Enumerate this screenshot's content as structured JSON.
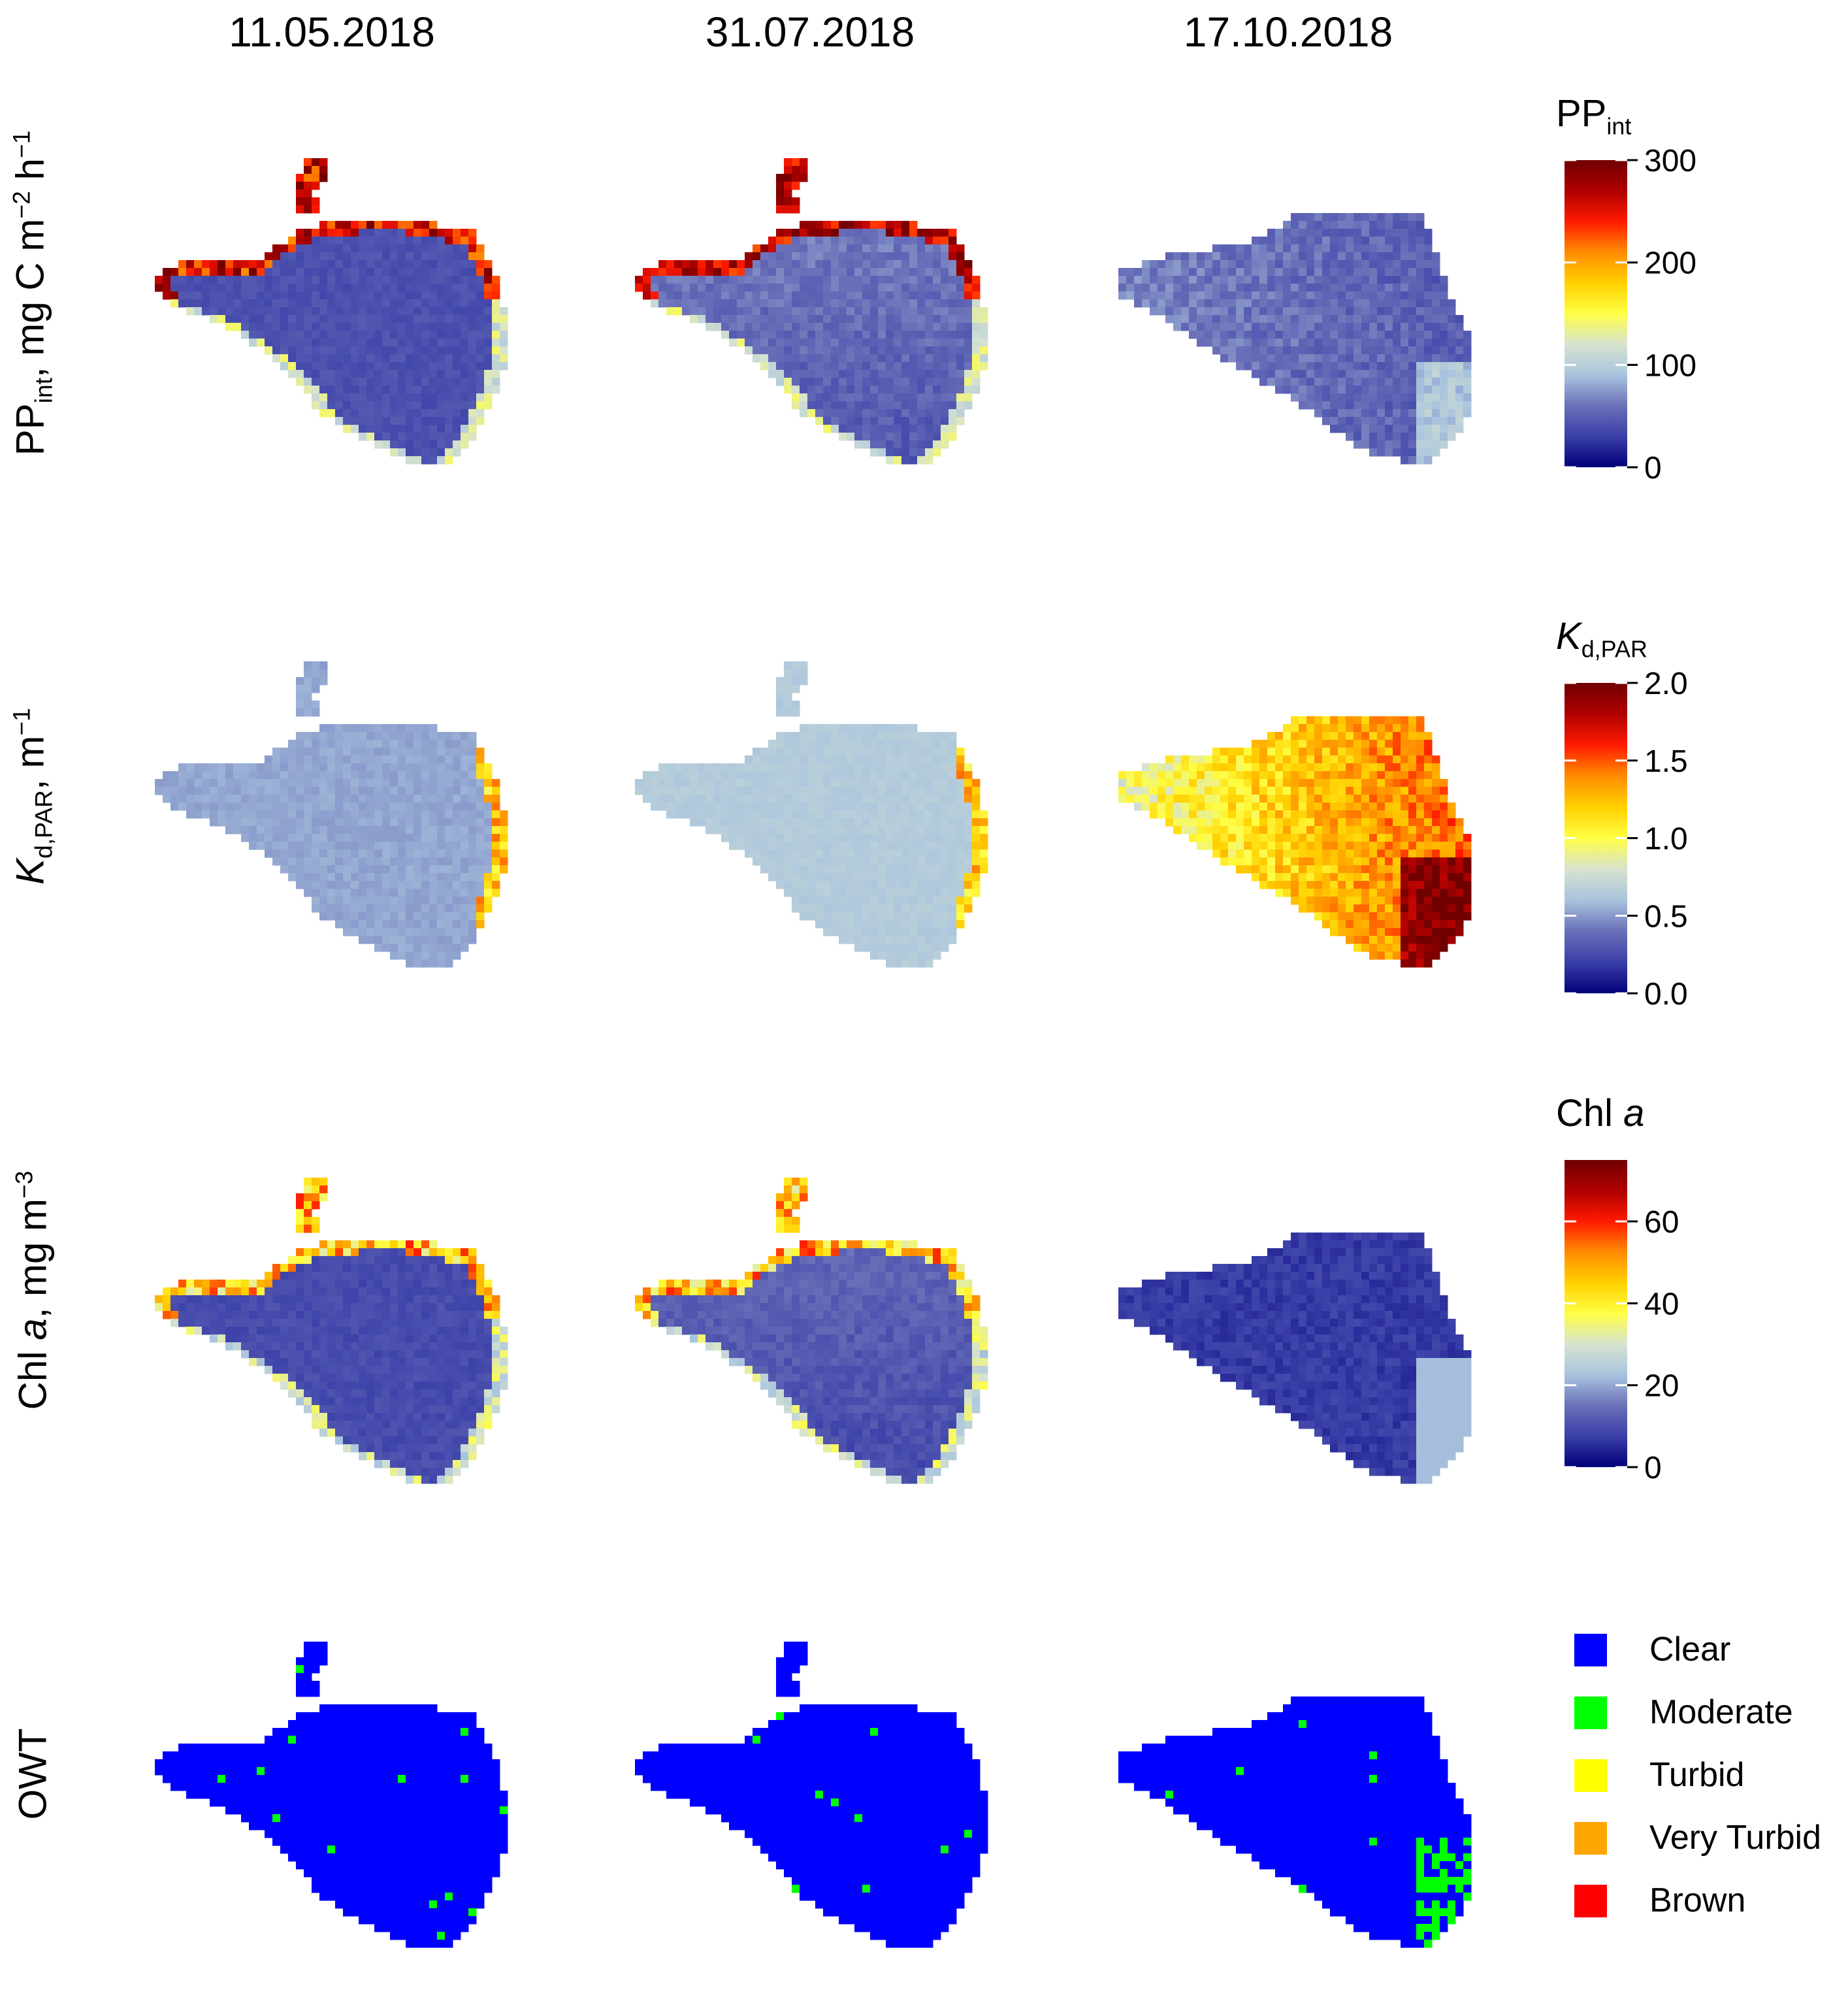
{
  "columns": [
    "11.05.2018",
    "31.07.2018",
    "17.10.2018"
  ],
  "rows": [
    {
      "id": "ppint",
      "label_main": "PP",
      "label_sub": "int",
      "label_rest": ", mg C m",
      "label_sup1": "−2",
      "label_mid": " h",
      "label_sup2": "−1"
    },
    {
      "id": "kd",
      "label_main": "K",
      "label_sub": "d,PAR",
      "label_rest": ", m",
      "label_sup1": "−1"
    },
    {
      "id": "chl",
      "label_main": "Chl ",
      "label_italic": "a",
      "label_rest": ", mg m",
      "label_sup1": "−3"
    },
    {
      "id": "owt",
      "label_main": "OWT"
    }
  ],
  "colorbars": [
    {
      "title_main": "PP",
      "title_sub": "int",
      "ticks": [
        "0",
        "100",
        "200",
        "300"
      ],
      "min": 0,
      "max": 300
    },
    {
      "title_main": "K",
      "title_sub": "d,PAR",
      "ticks": [
        "0.0",
        "0.5",
        "1.0",
        "1.5",
        "2.0"
      ],
      "min": 0,
      "max": 2
    },
    {
      "title_main": "Chl ",
      "title_italic": "a",
      "ticks": [
        "0",
        "20",
        "40",
        "60"
      ],
      "min": 0,
      "max": 75
    }
  ],
  "colormap": [
    "#00007a",
    "#3a3fa8",
    "#6a70b8",
    "#a9c4de",
    "#d7e3cf",
    "#ffff45",
    "#ffd000",
    "#ff8c00",
    "#ff1a00",
    "#b00000",
    "#700000"
  ],
  "legend": [
    {
      "label": "Clear",
      "color": "#0000ff"
    },
    {
      "label": "Moderate",
      "color": "#00ff00"
    },
    {
      "label": "Turbid",
      "color": "#ffff00"
    },
    {
      "label": "Very Turbid",
      "color": "#ffa500"
    },
    {
      "label": "Brown",
      "color": "#ff0000"
    }
  ]
}
